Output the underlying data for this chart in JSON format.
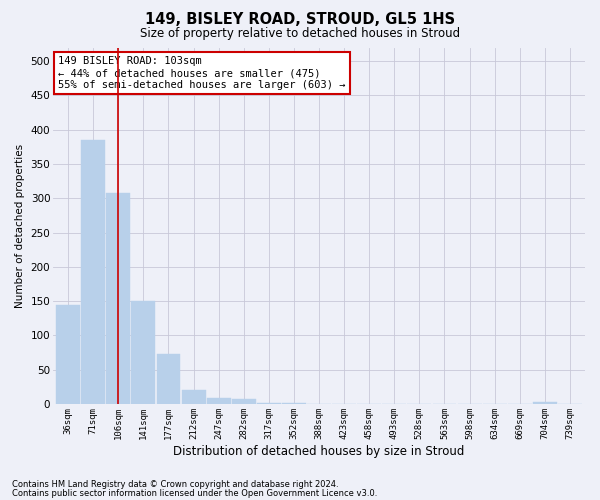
{
  "title": "149, BISLEY ROAD, STROUD, GL5 1HS",
  "subtitle": "Size of property relative to detached houses in Stroud",
  "xlabel": "Distribution of detached houses by size in Stroud",
  "ylabel": "Number of detached properties",
  "footnote1": "Contains HM Land Registry data © Crown copyright and database right 2024.",
  "footnote2": "Contains public sector information licensed under the Open Government Licence v3.0.",
  "bar_labels": [
    "36sqm",
    "71sqm",
    "106sqm",
    "141sqm",
    "177sqm",
    "212sqm",
    "247sqm",
    "282sqm",
    "317sqm",
    "352sqm",
    "388sqm",
    "423sqm",
    "458sqm",
    "493sqm",
    "528sqm",
    "563sqm",
    "598sqm",
    "634sqm",
    "669sqm",
    "704sqm",
    "739sqm"
  ],
  "bar_values": [
    145,
    385,
    308,
    150,
    73,
    20,
    9,
    7,
    2,
    1,
    0,
    0,
    0,
    0,
    0,
    0,
    0,
    0,
    0,
    3,
    0
  ],
  "bar_color": "#b8d0ea",
  "bar_edge_color": "#b8d0ea",
  "grid_color": "#c8c8d8",
  "bg_color": "#eef0f8",
  "vline_x": 2.0,
  "vline_color": "#cc0000",
  "annotation_text": "149 BISLEY ROAD: 103sqm\n← 44% of detached houses are smaller (475)\n55% of semi-detached houses are larger (603) →",
  "annotation_box_color": "#ffffff",
  "annotation_box_edge": "#cc0000",
  "ylim": [
    0,
    520
  ],
  "yticks": [
    0,
    50,
    100,
    150,
    200,
    250,
    300,
    350,
    400,
    450,
    500
  ]
}
